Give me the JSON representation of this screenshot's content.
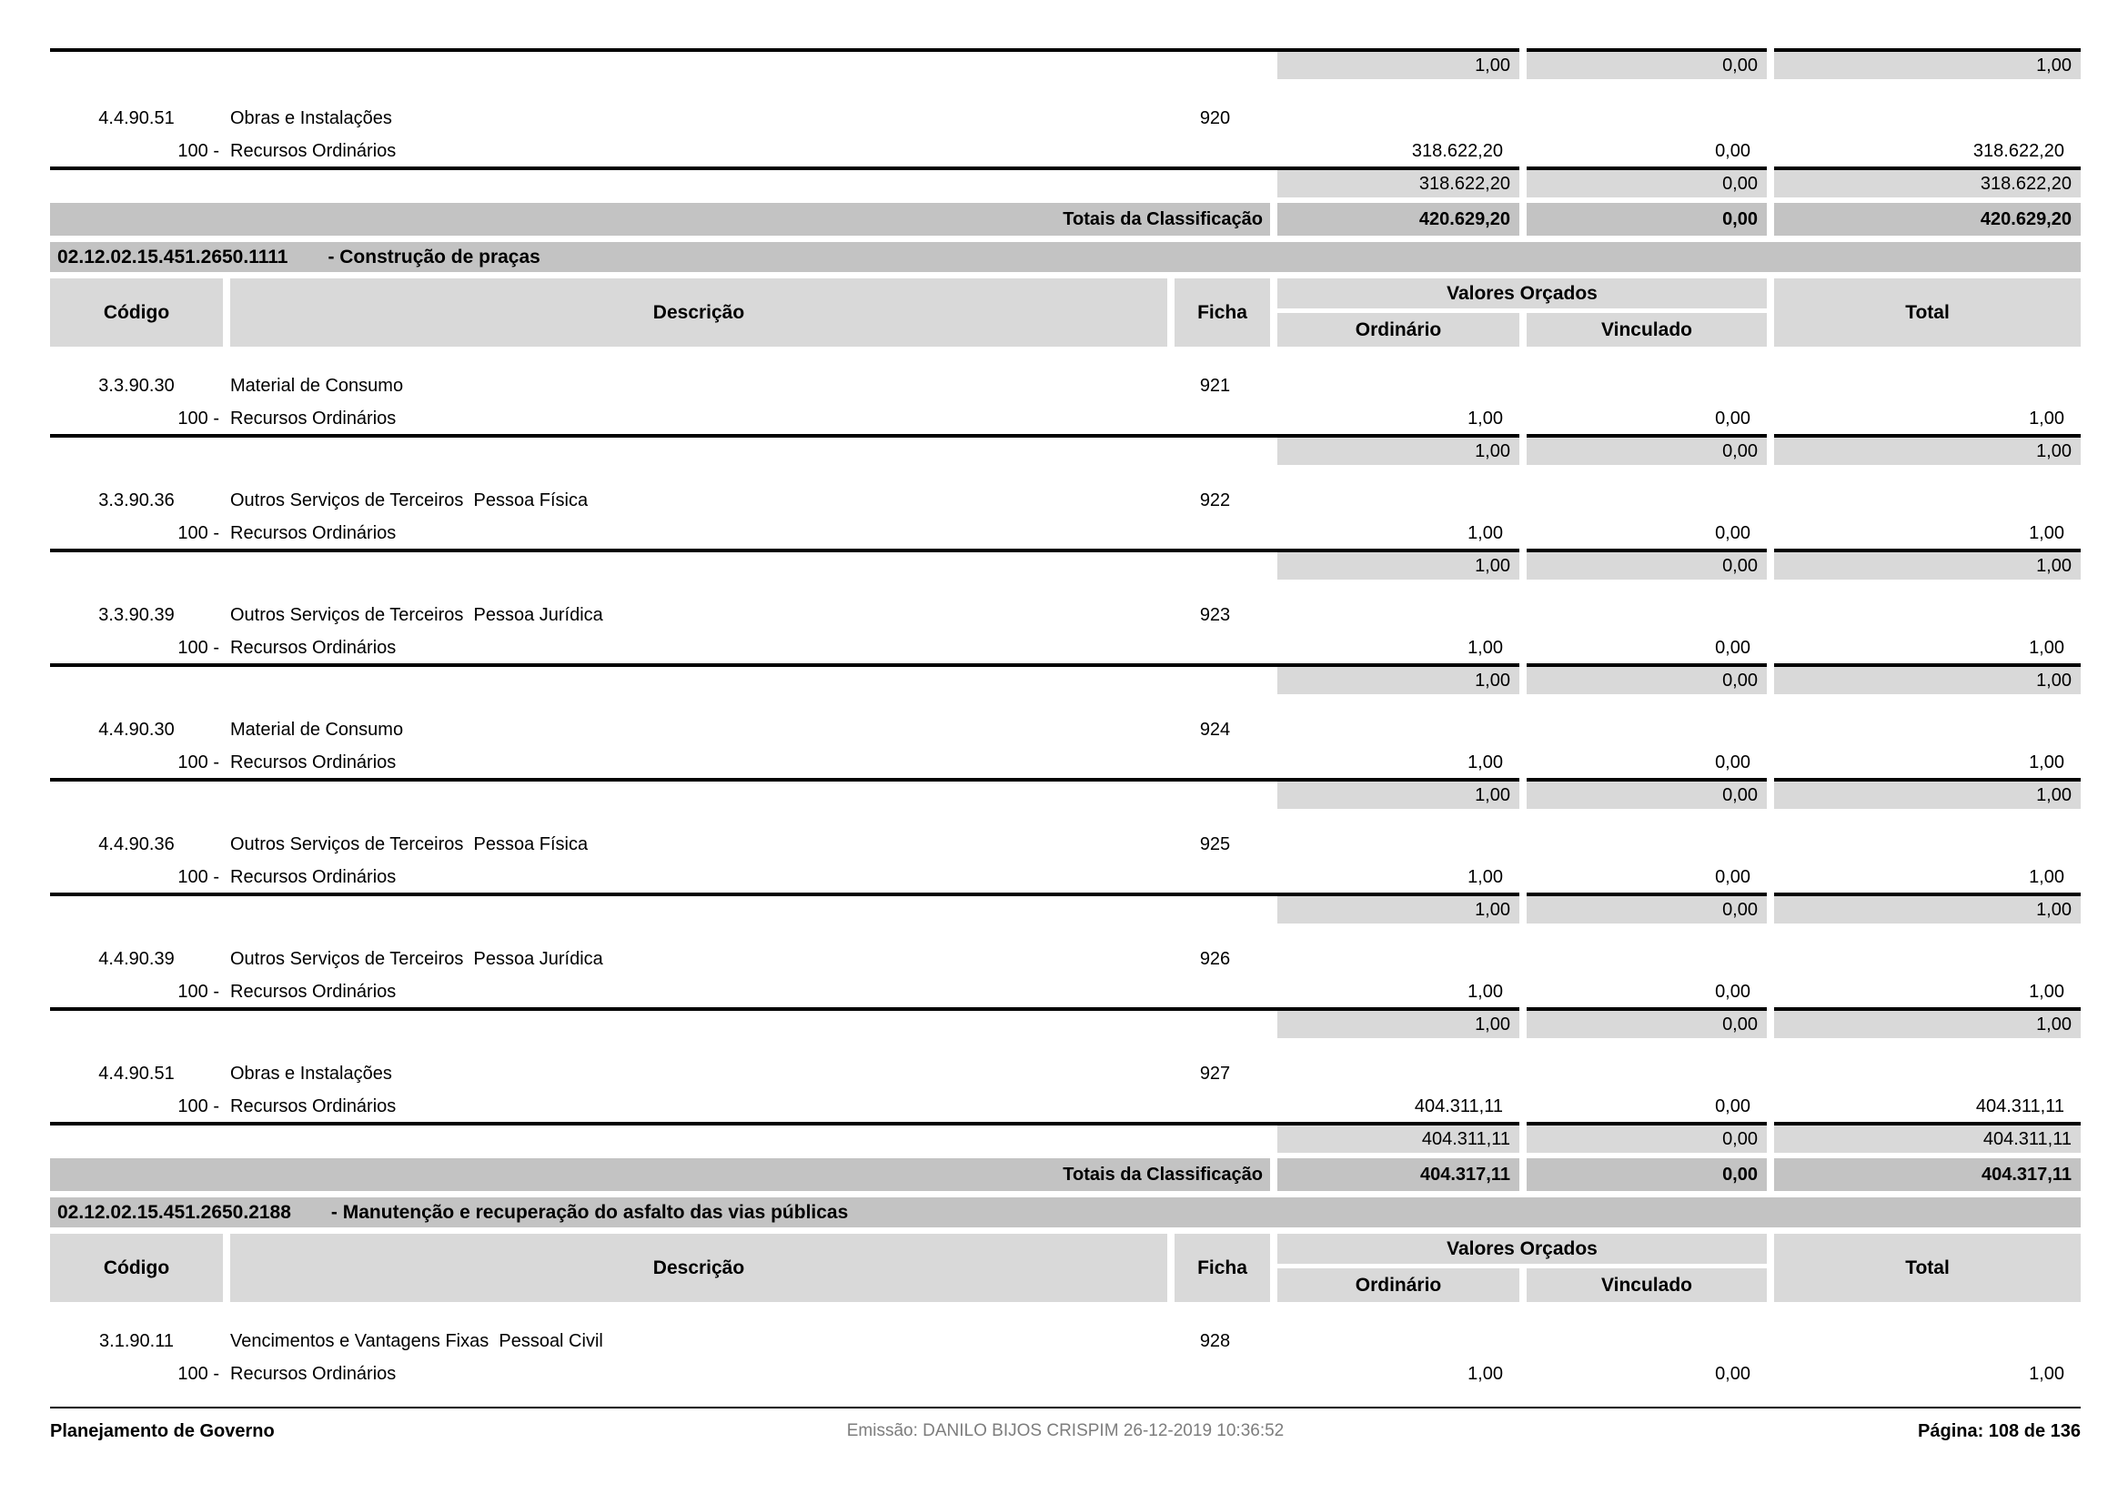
{
  "columns": {
    "codigo": "Código",
    "descricao": "Descrição",
    "ficha": "Ficha",
    "valores_orcados": "Valores Orçados",
    "ordinario": "Ordinário",
    "vinculado": "Vinculado",
    "total": "Total"
  },
  "labels": {
    "totais": "Totais da Classificação",
    "resource_code": "100 -",
    "resource_name": "Recursos Ordinários"
  },
  "colors": {
    "band_dark": "#c3c3c3",
    "band_light": "#d9d9d9",
    "line": "#000000",
    "footer_muted": "#7d7d7d"
  },
  "leading": {
    "carry": {
      "ord": "1,00",
      "vin": "0,00",
      "tot": "1,00"
    },
    "row": {
      "code": "4.4.90.51",
      "desc": "Obras e Instalações",
      "ficha": "920",
      "ord": "318.622,20",
      "vin": "0,00",
      "tot": "318.622,20",
      "sub_ord": "318.622,20",
      "sub_vin": "0,00",
      "sub_tot": "318.622,20"
    },
    "totais": {
      "ord": "420.629,20",
      "vin": "0,00",
      "tot": "420.629,20"
    }
  },
  "sections": [
    {
      "id": "02.12.02.15.451.2650.1111",
      "title": "- Construção de praças",
      "rows": [
        {
          "code": "3.3.90.30",
          "desc": "Material de Consumo",
          "ficha": "921",
          "ord": "1,00",
          "vin": "0,00",
          "tot": "1,00",
          "sub_ord": "1,00",
          "sub_vin": "0,00",
          "sub_tot": "1,00"
        },
        {
          "code": "3.3.90.36",
          "desc": "Outros Serviços de Terceiros  Pessoa Física",
          "ficha": "922",
          "ord": "1,00",
          "vin": "0,00",
          "tot": "1,00",
          "sub_ord": "1,00",
          "sub_vin": "0,00",
          "sub_tot": "1,00"
        },
        {
          "code": "3.3.90.39",
          "desc": "Outros Serviços de Terceiros  Pessoa Jurídica",
          "ficha": "923",
          "ord": "1,00",
          "vin": "0,00",
          "tot": "1,00",
          "sub_ord": "1,00",
          "sub_vin": "0,00",
          "sub_tot": "1,00"
        },
        {
          "code": "4.4.90.30",
          "desc": "Material de Consumo",
          "ficha": "924",
          "ord": "1,00",
          "vin": "0,00",
          "tot": "1,00",
          "sub_ord": "1,00",
          "sub_vin": "0,00",
          "sub_tot": "1,00"
        },
        {
          "code": "4.4.90.36",
          "desc": "Outros Serviços de Terceiros  Pessoa Física",
          "ficha": "925",
          "ord": "1,00",
          "vin": "0,00",
          "tot": "1,00",
          "sub_ord": "1,00",
          "sub_vin": "0,00",
          "sub_tot": "1,00"
        },
        {
          "code": "4.4.90.39",
          "desc": "Outros Serviços de Terceiros  Pessoa Jurídica",
          "ficha": "926",
          "ord": "1,00",
          "vin": "0,00",
          "tot": "1,00",
          "sub_ord": "1,00",
          "sub_vin": "0,00",
          "sub_tot": "1,00"
        },
        {
          "code": "4.4.90.51",
          "desc": "Obras e Instalações",
          "ficha": "927",
          "ord": "404.311,11",
          "vin": "0,00",
          "tot": "404.311,11",
          "sub_ord": "404.311,11",
          "sub_vin": "0,00",
          "sub_tot": "404.311,11"
        }
      ],
      "totais": {
        "ord": "404.317,11",
        "vin": "0,00",
        "tot": "404.317,11"
      }
    },
    {
      "id": "02.12.02.15.451.2650.2188",
      "title": "- Manutenção e recuperação do asfalto das vias públicas",
      "rows": [
        {
          "code": "3.1.90.11",
          "desc": "Vencimentos e Vantagens Fixas  Pessoal Civil",
          "ficha": "928",
          "ord": "1,00",
          "vin": "0,00",
          "tot": "1,00"
        }
      ]
    }
  ],
  "footer": {
    "left": "Planejamento de Governo",
    "center": "Emissão: DANILO BIJOS CRISPIM 26-12-2019 10:36:52",
    "right": "Página: 108 de 136"
  }
}
